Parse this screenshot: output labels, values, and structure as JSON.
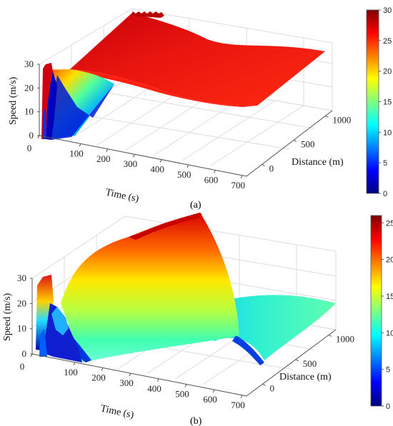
{
  "chart_data": [
    {
      "type": "surface",
      "caption": "(a)",
      "xlabel": "Time (s)",
      "ylabel": "Distance (m)",
      "zlabel": "Speed (m/s)",
      "x_ticks": [
        "0",
        "100",
        "200",
        "300",
        "400",
        "500",
        "600",
        "700"
      ],
      "y_ticks": [
        "0",
        "500",
        "1000"
      ],
      "z_ticks": [
        "0",
        "10",
        "20",
        "30"
      ],
      "colorbar_ticks": [
        "0",
        "5",
        "10",
        "15",
        "20",
        "25",
        "30"
      ],
      "clim": [
        0,
        30
      ],
      "surface_speed_profile": [
        {
          "time": 10,
          "speed": 28
        },
        {
          "time": 40,
          "speed": 30
        },
        {
          "time": 80,
          "speed": 27
        },
        {
          "time": 200,
          "speed": 26
        },
        {
          "time": 400,
          "speed": 27
        },
        {
          "time": 600,
          "speed": 26
        },
        {
          "time": 700,
          "speed": 27
        }
      ]
    },
    {
      "type": "surface",
      "caption": "(b)",
      "xlabel": "Time (s)",
      "ylabel": "Distance (m)",
      "zlabel": "Speed (m/s)",
      "x_ticks": [
        "0",
        "100",
        "200",
        "300",
        "400",
        "500",
        "600",
        "700"
      ],
      "y_ticks": [
        "0",
        "500",
        "1000"
      ],
      "z_ticks": [
        "0",
        "10",
        "20",
        "30"
      ],
      "colorbar_ticks": [
        "0",
        "5",
        "10",
        "15",
        "20",
        "25"
      ],
      "clim": [
        0,
        26
      ],
      "surface_speed_profile": [
        {
          "time": 20,
          "speed": 26
        },
        {
          "time": 80,
          "speed": 18
        },
        {
          "time": 150,
          "speed": 0
        },
        {
          "time": 300,
          "speed": 26
        },
        {
          "time": 500,
          "speed": 15
        },
        {
          "time": 620,
          "speed": 0
        },
        {
          "time": 700,
          "speed": 14
        }
      ]
    }
  ],
  "colors": {
    "jet": [
      "#00007f",
      "#0000ff",
      "#007fff",
      "#00ffff",
      "#7fff7f",
      "#ffff00",
      "#ff7f00",
      "#ff0000",
      "#7f0000"
    ]
  }
}
